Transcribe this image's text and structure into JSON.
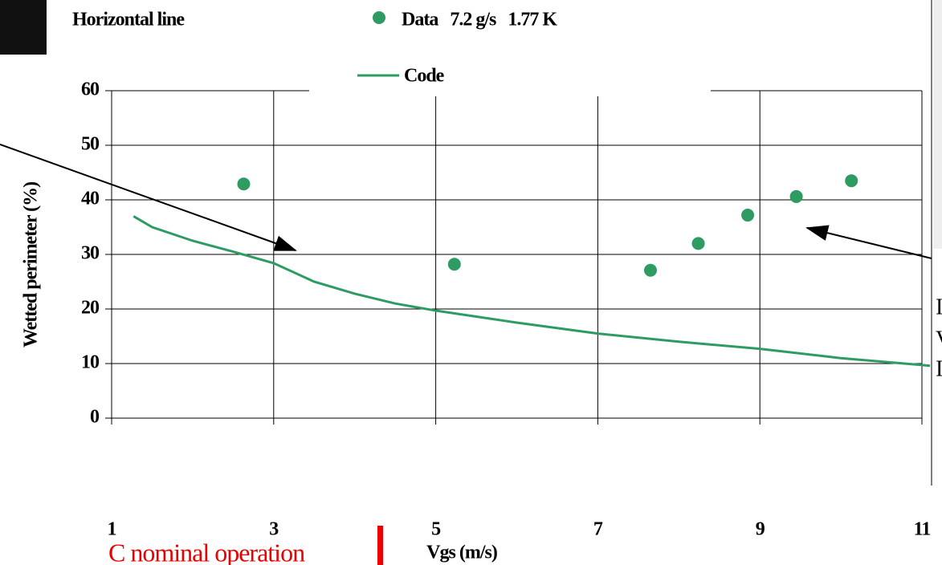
{
  "chart_data": {
    "type": "line_scatter",
    "annotation_top": "Horizontal line",
    "xlabel": "Vgs (m/s)",
    "ylabel": "Wetted perimeter (%)",
    "annotations": [
      "C nominal operation",
      "I",
      "V",
      "I"
    ],
    "xlim": [
      1,
      11
    ],
    "xticks": [
      1,
      3,
      5,
      7,
      9,
      11
    ],
    "ylim": [
      0,
      60
    ],
    "yticks": [
      0,
      10,
      20,
      30,
      40,
      50,
      60
    ],
    "grid": true,
    "series": [
      {
        "name": "Data   7.2 g/s   1.77 K",
        "kind": "scatter",
        "color": "#2e9b63",
        "x": [
          2.63,
          5.23,
          7.65,
          8.24,
          8.85,
          9.45,
          10.13
        ],
        "values": [
          42.9,
          28.2,
          27.1,
          32,
          37.2,
          40.6,
          43.5
        ]
      },
      {
        "name": "Code",
        "kind": "line",
        "color": "#2e9b63",
        "x": [
          1.27,
          1.5,
          2,
          2.5,
          3,
          3.5,
          4,
          4.5,
          5,
          6,
          7,
          8,
          9,
          10,
          11.1
        ],
        "values": [
          37,
          35,
          32.5,
          30.5,
          28.4,
          25,
          22.8,
          21,
          19.7,
          17.5,
          15.5,
          14,
          12.7,
          11,
          9.6
        ]
      }
    ]
  }
}
